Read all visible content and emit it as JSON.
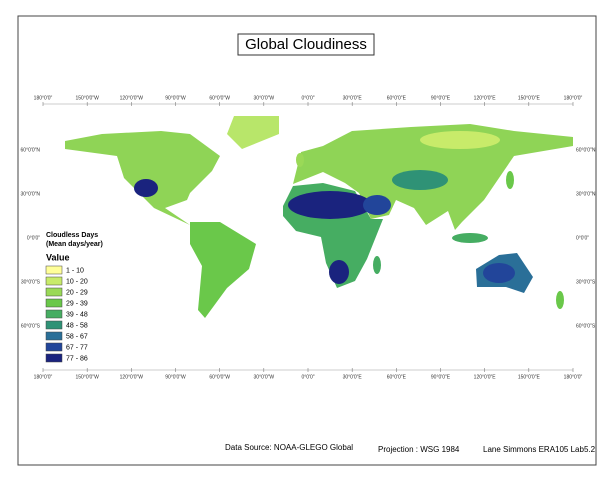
{
  "title": "Global Cloudiness",
  "graticule": {
    "longitudes": [
      "180°0'0\"",
      "150°0'0\"W",
      "120°0'0\"W",
      "90°0'0\"W",
      "60°0'0\"W",
      "30°0'0\"W",
      "0°0'0\"",
      "30°0'0\"E",
      "60°0'0\"E",
      "90°0'0\"E",
      "120°0'0\"E",
      "150°0'0\"E",
      "180°0'0\""
    ],
    "latitudes": [
      "60°0'0\"N",
      "30°0'0\"N",
      "0°0'0\"",
      "30°0'0\"S",
      "60°0'0\"S"
    ]
  },
  "legend": {
    "title": "Cloudless Days",
    "subtitle": "(Mean days/year)",
    "heading": "Value",
    "items": [
      {
        "label": "1 - 10",
        "color": "#ffff99"
      },
      {
        "label": "10 - 20",
        "color": "#c8eb6a"
      },
      {
        "label": "20 - 29",
        "color": "#9ad957"
      },
      {
        "label": "29 - 39",
        "color": "#6ac84a"
      },
      {
        "label": "39 - 48",
        "color": "#46ad62"
      },
      {
        "label": "48 - 58",
        "color": "#2f9276"
      },
      {
        "label": "58 - 67",
        "color": "#2a6f98"
      },
      {
        "label": "67 - 77",
        "color": "#22459a"
      },
      {
        "label": "77 - 86",
        "color": "#1a237e"
      }
    ]
  },
  "footer": {
    "source": "Data Source: NOAA-GLEGO Global",
    "projection": "Projection : WSG 1984",
    "author": "Lane Simmons ERA105 Lab5.2"
  }
}
